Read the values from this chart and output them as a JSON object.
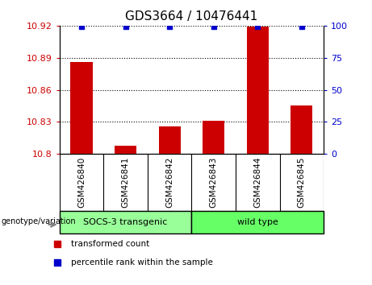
{
  "title": "GDS3664 / 10476441",
  "samples": [
    "GSM426840",
    "GSM426841",
    "GSM426842",
    "GSM426843",
    "GSM426844",
    "GSM426845"
  ],
  "red_values": [
    10.886,
    10.808,
    10.826,
    10.831,
    10.919,
    10.845
  ],
  "blue_values": [
    99,
    99,
    99,
    99,
    99,
    99
  ],
  "ylim_left": [
    10.8,
    10.92
  ],
  "ylim_right": [
    0,
    100
  ],
  "yticks_left": [
    10.8,
    10.83,
    10.86,
    10.89,
    10.92
  ],
  "yticks_right": [
    0,
    25,
    50,
    75,
    100
  ],
  "ytick_labels_left": [
    "10.8",
    "10.83",
    "10.86",
    "10.89",
    "10.92"
  ],
  "ytick_labels_right": [
    "0",
    "25",
    "50",
    "75",
    "100"
  ],
  "group1_label": "SOCS-3 transgenic",
  "group2_label": "wild type",
  "genotype_label": "genotype/variation",
  "legend_red": "transformed count",
  "legend_blue": "percentile rank within the sample",
  "bar_color": "#cc0000",
  "dot_color": "#0000cc",
  "group1_color": "#99ff99",
  "group2_color": "#66ff66",
  "xtick_bg_color": "#c8c8c8",
  "left_tick_color": "#cc0000",
  "right_tick_color": "#0000cc"
}
